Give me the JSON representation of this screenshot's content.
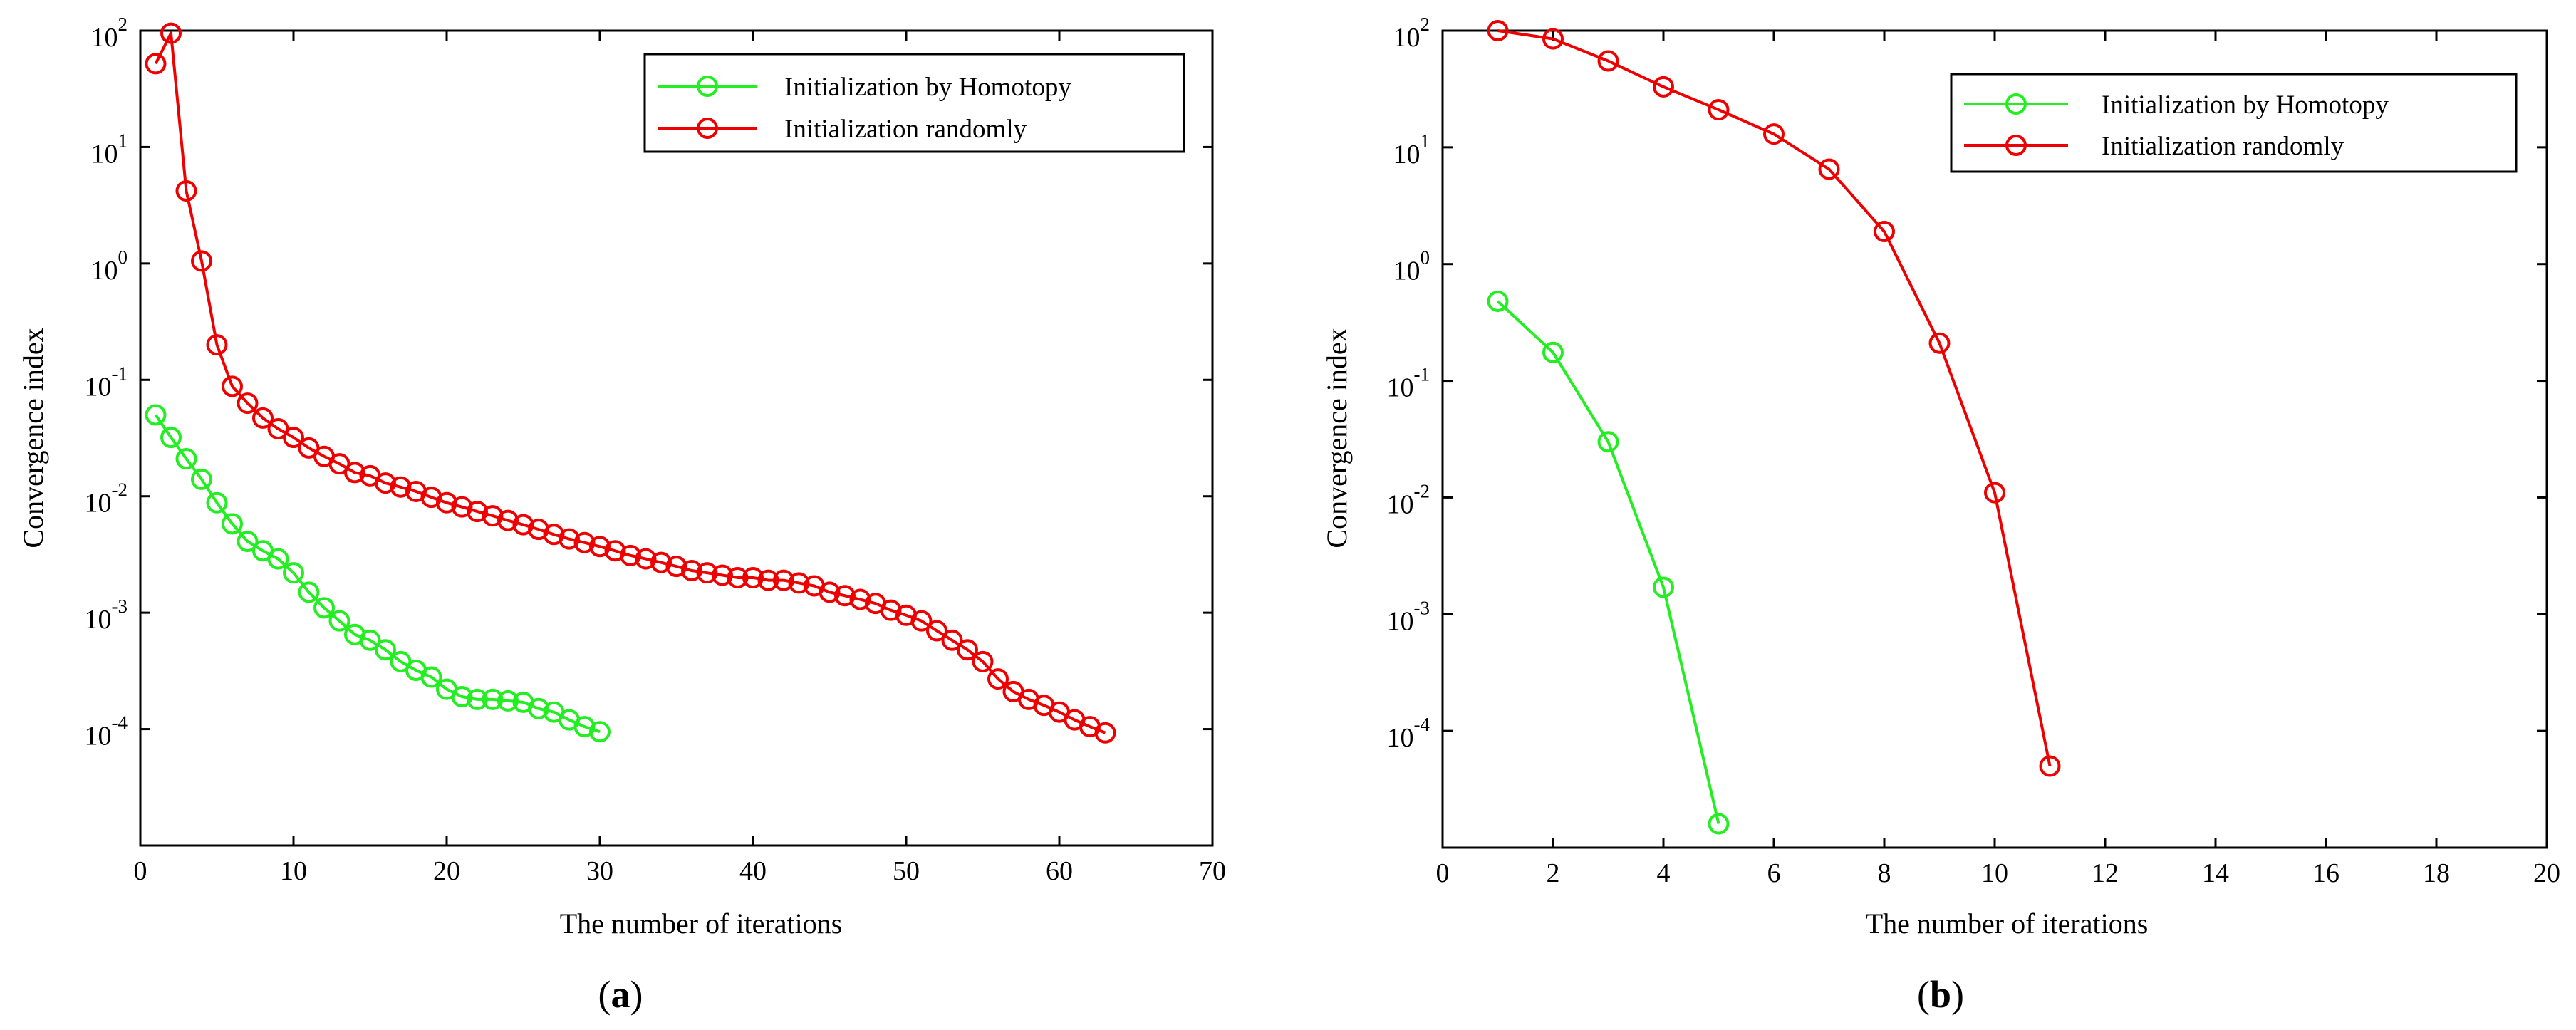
{
  "chart_data": [
    {
      "type": "line",
      "panel": "a",
      "caption_open": "(",
      "caption_letter": "a",
      "caption_close": ")",
      "xlabel": "The number of iterations",
      "ylabel": "Convergence index",
      "xlim": [
        0,
        70
      ],
      "ylim_log10": [
        -5,
        2
      ],
      "yscale": "log",
      "xticks": [
        0,
        10,
        20,
        30,
        40,
        50,
        60,
        70
      ],
      "ytick_exponents": [
        -4,
        -3,
        -2,
        -1,
        0,
        1,
        2
      ],
      "legend_position": "top-right",
      "series": [
        {
          "name": "Initialization by Homotopy",
          "color": "#22ee22",
          "x": [
            1,
            2,
            3,
            4,
            5,
            6,
            7,
            8,
            9,
            10,
            11,
            12,
            13,
            14,
            15,
            16,
            17,
            18,
            19,
            20,
            21,
            22,
            23,
            24,
            25,
            26,
            27,
            28,
            29,
            30
          ],
          "y": [
            0.05,
            0.032,
            0.021,
            0.014,
            0.0088,
            0.0058,
            0.0041,
            0.0034,
            0.0029,
            0.0022,
            0.0015,
            0.0011,
            0.00085,
            0.00065,
            0.00058,
            0.00048,
            0.00038,
            0.00032,
            0.00028,
            0.00022,
            0.00019,
            0.00018,
            0.00018,
            0.000175,
            0.00017,
            0.00015,
            0.00014,
            0.00012,
            0.000105,
            9.5e-05
          ]
        },
        {
          "name": "Initialization randomly",
          "color": "#ee0000",
          "x": [
            1,
            2,
            3,
            4,
            5,
            6,
            7,
            8,
            9,
            10,
            11,
            12,
            13,
            14,
            15,
            16,
            17,
            18,
            19,
            20,
            21,
            22,
            23,
            24,
            25,
            26,
            27,
            28,
            29,
            30,
            31,
            32,
            33,
            34,
            35,
            36,
            37,
            38,
            39,
            40,
            41,
            42,
            43,
            44,
            45,
            46,
            47,
            48,
            49,
            50,
            51,
            52,
            53,
            54,
            55,
            56,
            57,
            58,
            59,
            60,
            61,
            62,
            63
          ],
          "y": [
            52,
            95,
            4.2,
            1.05,
            0.2,
            0.088,
            0.063,
            0.047,
            0.038,
            0.032,
            0.026,
            0.022,
            0.019,
            0.016,
            0.015,
            0.013,
            0.012,
            0.011,
            0.0098,
            0.0088,
            0.0081,
            0.0074,
            0.0068,
            0.0062,
            0.0057,
            0.0052,
            0.0047,
            0.0043,
            0.004,
            0.0037,
            0.0034,
            0.0031,
            0.0029,
            0.0027,
            0.0025,
            0.0023,
            0.0022,
            0.0021,
            0.002,
            0.002,
            0.0019,
            0.0019,
            0.0018,
            0.0017,
            0.0015,
            0.0014,
            0.0013,
            0.0012,
            0.00105,
            0.00095,
            0.00085,
            0.0007,
            0.00058,
            0.00048,
            0.00038,
            0.00027,
            0.00021,
            0.00018,
            0.00016,
            0.00014,
            0.00012,
            0.000105,
            9.3e-05
          ]
        }
      ]
    },
    {
      "type": "line",
      "panel": "b",
      "caption_open": "(",
      "caption_letter": "b",
      "caption_close": ")",
      "xlabel": "The number of iterations",
      "ylabel": "Convergence index",
      "xlim": [
        0,
        20
      ],
      "ylim_log10": [
        -5,
        2
      ],
      "yscale": "log",
      "xticks": [
        0,
        2,
        4,
        6,
        8,
        10,
        12,
        14,
        16,
        18,
        20
      ],
      "ytick_exponents": [
        -4,
        -3,
        -2,
        -1,
        0,
        1,
        2
      ],
      "legend_position": "top-right",
      "series": [
        {
          "name": "Initialization by Homotopy",
          "color": "#22ee22",
          "x": [
            1,
            2,
            3,
            4,
            5
          ],
          "y": [
            0.48,
            0.175,
            0.03,
            0.0017,
            1.6e-05
          ]
        },
        {
          "name": "Initialization randomly",
          "color": "#ee0000",
          "x": [
            1,
            2,
            3,
            4,
            5,
            6,
            7,
            8,
            9,
            10,
            11
          ],
          "y": [
            100,
            85,
            55,
            33,
            21,
            13,
            6.5,
            1.9,
            0.21,
            0.011,
            5e-05
          ]
        }
      ]
    }
  ]
}
